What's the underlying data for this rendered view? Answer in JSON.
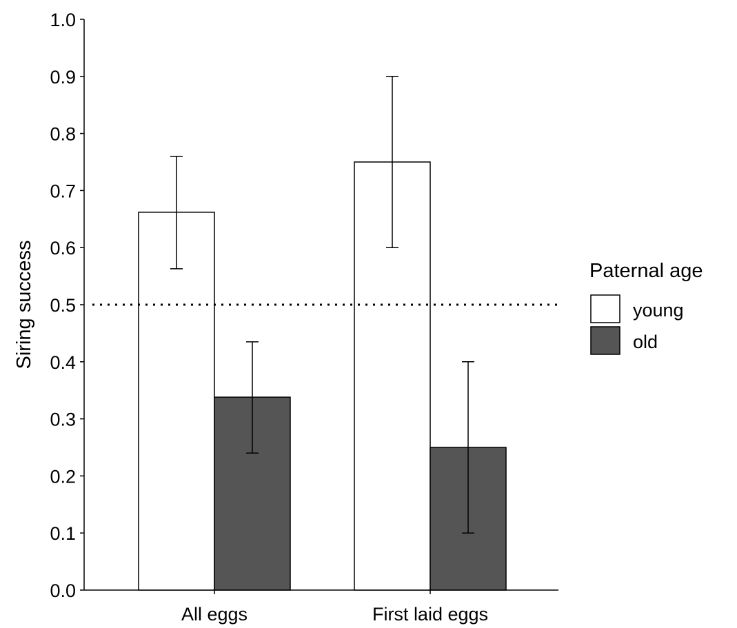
{
  "chart_data": {
    "type": "bar",
    "title": "",
    "xlabel": "",
    "ylabel": "Siring success",
    "ylim": [
      0,
      1.0
    ],
    "yticks": [
      "0.0",
      "0.1",
      "0.2",
      "0.3",
      "0.4",
      "0.5",
      "0.6",
      "0.7",
      "0.8",
      "0.9",
      "1.0"
    ],
    "categories": [
      "All eggs",
      "First laid eggs"
    ],
    "series": [
      {
        "name": "young",
        "color": "#ffffff",
        "values": [
          0.662,
          0.75
        ],
        "error_low": [
          0.563,
          0.6
        ],
        "error_high": [
          0.76,
          0.9
        ]
      },
      {
        "name": "old",
        "color": "#555555",
        "values": [
          0.338,
          0.25
        ],
        "error_low": [
          0.24,
          0.1
        ],
        "error_high": [
          0.435,
          0.4
        ]
      }
    ],
    "reference_line": {
      "y": 0.5,
      "style": "dotted"
    },
    "legend": {
      "title": "Paternal age",
      "position": "right"
    },
    "grid": false
  }
}
